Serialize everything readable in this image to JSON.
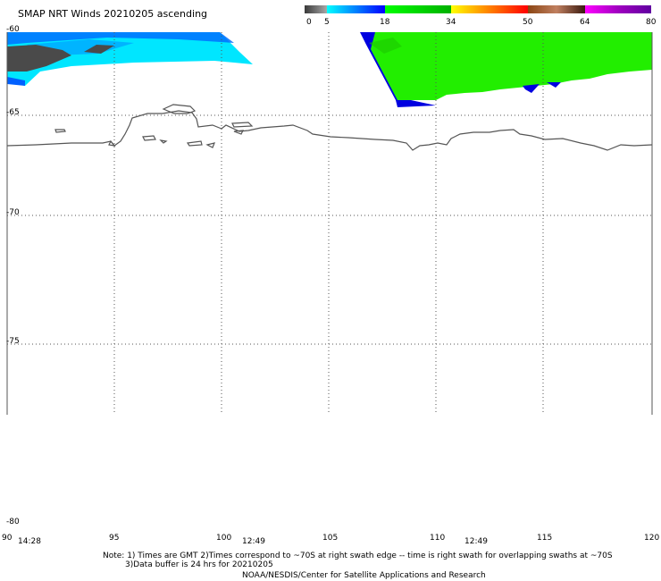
{
  "title": "SMAP NRT Winds 20210205 ascending",
  "colorbar": {
    "tick_labels": [
      "0",
      "5",
      "18",
      "34",
      "50",
      "64",
      "80"
    ],
    "ticks": [
      0,
      5,
      18,
      34,
      50,
      64,
      80
    ],
    "range": [
      0,
      80
    ],
    "stops": [
      {
        "from": 0,
        "to": 5,
        "colors": [
          "#3a3a3a",
          "#a8a8a8"
        ]
      },
      {
        "from": 5,
        "to": 18,
        "colors": [
          "#00ffff",
          "#0000ff"
        ]
      },
      {
        "from": 18,
        "to": 34,
        "colors": [
          "#00ff00",
          "#00b000"
        ]
      },
      {
        "from": 34,
        "to": 50,
        "colors": [
          "#ffff00",
          "#ff8000",
          "#ff0000"
        ]
      },
      {
        "from": 50,
        "to": 64,
        "colors": [
          "#8b4513",
          "#c08060",
          "#3a1a10"
        ]
      },
      {
        "from": 64,
        "to": 80,
        "colors": [
          "#ff00ff",
          "#a000c0",
          "#6000a0"
        ]
      }
    ]
  },
  "axes": {
    "lat_labels": [
      "-60",
      "-65",
      "-70",
      "-75",
      "-80"
    ],
    "lat_values": [
      -60,
      -65,
      -70,
      -75,
      -80
    ],
    "lon_labels": [
      "90",
      "95",
      "100",
      "105",
      "110",
      "115",
      "120"
    ],
    "lon_values": [
      90,
      95,
      100,
      105,
      110,
      115,
      120
    ],
    "lat_range": [
      -80,
      -60
    ],
    "lon_range": [
      90,
      120
    ]
  },
  "swath_times": [
    "14:28",
    "12:49",
    "12:49"
  ],
  "notes": {
    "line1": "Note: 1) Times are GMT 2)Times correspond to ~70S at right swath edge -- time is right swath for overlapping swaths at ~70S",
    "line2": "3)Data buffer is 24 hrs for 20210205",
    "line3": "NOAA/NESDIS/Center for Satellite Applications and Research"
  },
  "colors": {
    "gridline": "#555555",
    "coastline": "#555555",
    "grey_low_wind": "#4a4a4a",
    "cyan_wind": "#00e6ff",
    "blue_wind": "#0060ff",
    "green_wind": "#22ee00",
    "dark_blue_edge": "#0000e0"
  }
}
